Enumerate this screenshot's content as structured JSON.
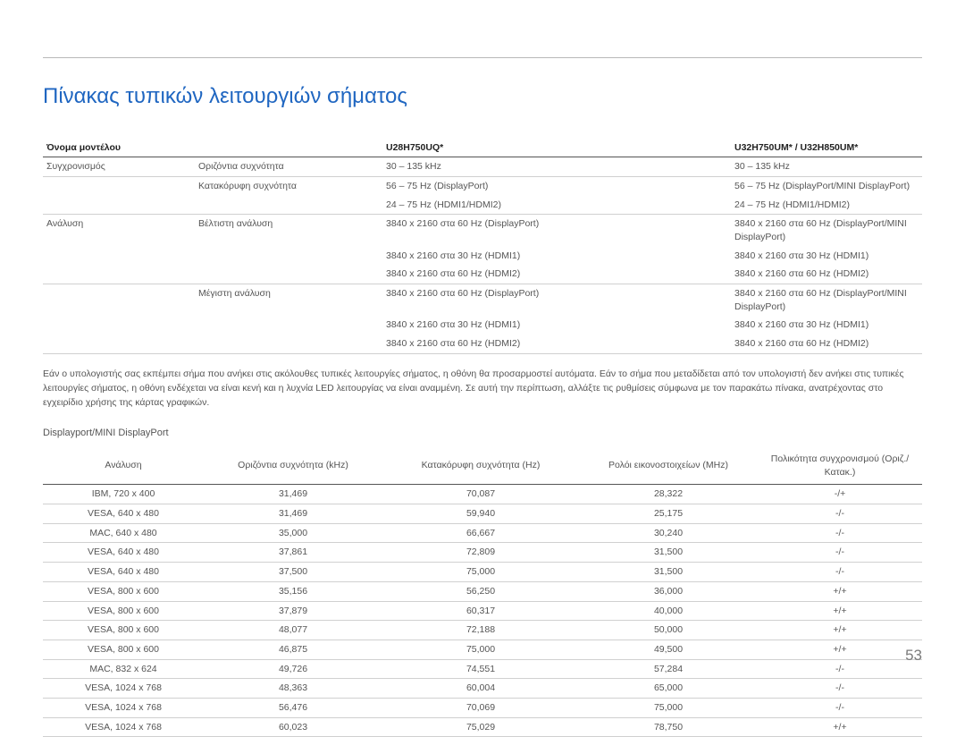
{
  "title": "Πίνακας τυπικών λειτουργιών σήματος",
  "page_number": "53",
  "spec_header": {
    "c1": "Όνομα μοντέλου",
    "c2": "",
    "c3": "U28H750UQ*",
    "c4": "U32H750UM* / U32H850UM*"
  },
  "spec_rows": [
    {
      "c1": "Συγχρονισμός",
      "c2": "Οριζόντια συχνότητα",
      "c3": "30 – 135 kHz",
      "c4": "30 – 135 kHz",
      "group_end": true
    },
    {
      "c1": "",
      "c2": "Κατακόρυφη συχνότητα",
      "c3": "56 – 75 Hz (DisplayPort)",
      "c4": "56 – 75 Hz (DisplayPort/MINI DisplayPort)"
    },
    {
      "c1": "",
      "c2": "",
      "c3": "24 – 75 Hz (HDMI1/HDMI2)",
      "c4": "24 – 75 Hz (HDMI1/HDMI2)",
      "group_end": true
    },
    {
      "c1": "Ανάλυση",
      "c2": "Βέλτιστη ανάλυση",
      "c3": "3840 x 2160 στα 60 Hz (DisplayPort)",
      "c4": "3840 x 2160 στα 60 Hz (DisplayPort/MINI DisplayPort)"
    },
    {
      "c1": "",
      "c2": "",
      "c3": "3840 x 2160 στα 30 Hz (HDMI1)",
      "c4": "3840 x 2160 στα 30 Hz (HDMI1)"
    },
    {
      "c1": "",
      "c2": "",
      "c3": "3840 x 2160 στα 60 Hz (HDMI2)",
      "c4": "3840 x 2160 στα 60 Hz (HDMI2)",
      "group_end": true
    },
    {
      "c1": "",
      "c2": "Μέγιστη ανάλυση",
      "c3": "3840 x 2160 στα 60 Hz (DisplayPort)",
      "c4": "3840 x 2160 στα 60 Hz (DisplayPort/MINI DisplayPort)"
    },
    {
      "c1": "",
      "c2": "",
      "c3": "3840 x 2160 στα 30 Hz (HDMI1)",
      "c4": "3840 x 2160 στα 30 Hz (HDMI1)"
    },
    {
      "c1": "",
      "c2": "",
      "c3": "3840 x 2160 στα 60 Hz (HDMI2)",
      "c4": "3840 x 2160 στα 60 Hz (HDMI2)",
      "group_end": true
    }
  ],
  "note": "Εάν ο υπολογιστής σας εκπέμπει σήμα που ανήκει στις ακόλουθες τυπικές λειτουργίες σήματος, η οθόνη θα προσαρμοστεί αυτόματα. Εάν το σήμα που μεταδίδεται από τον υπολογιστή δεν ανήκει στις τυπικές λειτουργίες σήματος, η οθόνη ενδέχεται να είναι κενή και η λυχνία LED λειτουργίας να είναι αναμμένη. Σε αυτή την περίπτωση, αλλάξτε τις ρυθμίσεις σύμφωνα με τον παρακάτω πίνακα, ανατρέχοντας στο εγχειρίδιο χρήσης της κάρτας γραφικών.",
  "timing_section_title": "Displayport/MINI DisplayPort",
  "timing_columns": [
    "Ανάλυση",
    "Οριζόντια συχνότητα (kHz)",
    "Κατακόρυφη συχνότητα (Hz)",
    "Ρολόι εικονοστοιχείων (MHz)",
    "Πολικότητα συγχρονισμού (Οριζ./Κατακ.)"
  ],
  "timing_rows": [
    [
      "IBM, 720 x 400",
      "31,469",
      "70,087",
      "28,322",
      "-/+"
    ],
    [
      "VESA, 640 x 480",
      "31,469",
      "59,940",
      "25,175",
      "-/-"
    ],
    [
      "MAC, 640 x 480",
      "35,000",
      "66,667",
      "30,240",
      "-/-"
    ],
    [
      "VESA, 640 x 480",
      "37,861",
      "72,809",
      "31,500",
      "-/-"
    ],
    [
      "VESA, 640 x 480",
      "37,500",
      "75,000",
      "31,500",
      "-/-"
    ],
    [
      "VESA, 800 x 600",
      "35,156",
      "56,250",
      "36,000",
      "+/+"
    ],
    [
      "VESA, 800 x 600",
      "37,879",
      "60,317",
      "40,000",
      "+/+"
    ],
    [
      "VESA, 800 x 600",
      "48,077",
      "72,188",
      "50,000",
      "+/+"
    ],
    [
      "VESA, 800 x 600",
      "46,875",
      "75,000",
      "49,500",
      "+/+"
    ],
    [
      "MAC, 832 x 624",
      "49,726",
      "74,551",
      "57,284",
      "-/-"
    ],
    [
      "VESA, 1024 x 768",
      "48,363",
      "60,004",
      "65,000",
      "-/-"
    ],
    [
      "VESA, 1024 x 768",
      "56,476",
      "70,069",
      "75,000",
      "-/-"
    ],
    [
      "VESA, 1024 x 768",
      "60,023",
      "75,029",
      "78,750",
      "+/+"
    ]
  ]
}
